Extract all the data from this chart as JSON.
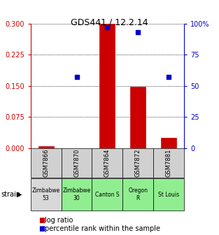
{
  "title": "GDS441 / 12.2.14",
  "samples": [
    "GSM7866",
    "GSM7870",
    "GSM7864",
    "GSM7872",
    "GSM7881"
  ],
  "strains": [
    "Zimbabwe\n53",
    "Zimbabwe\n30",
    "Canton S",
    "Oregon\nR",
    "St Louis"
  ],
  "strain_colors": [
    "#d8d8d8",
    "#90ee90",
    "#90ee90",
    "#90ee90",
    "#90ee90"
  ],
  "log_ratios": [
    0.005,
    -0.015,
    0.3,
    0.148,
    0.025
  ],
  "percentile_ranks": [
    null,
    57,
    97,
    93,
    57
  ],
  "ylim_left": [
    0,
    0.3
  ],
  "ylim_right": [
    0,
    100
  ],
  "yticks_left": [
    0,
    0.075,
    0.15,
    0.225,
    0.3
  ],
  "yticks_right": [
    0,
    25,
    50,
    75,
    100
  ],
  "bar_color": "#cc0000",
  "dot_color": "#0000cc",
  "left_axis_color": "#cc0000",
  "right_axis_color": "#0000cc",
  "legend_log_ratio_color": "#cc0000",
  "legend_percentile_color": "#0000cc"
}
